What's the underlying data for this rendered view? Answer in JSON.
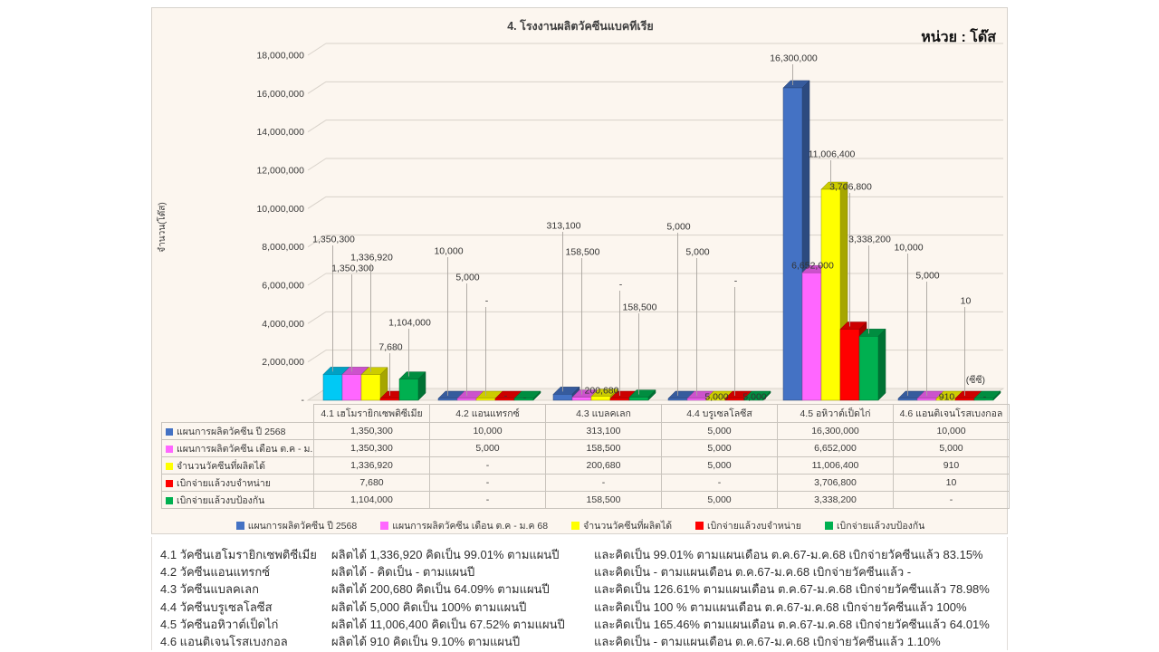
{
  "panel": {
    "background": "#FCF6EF",
    "border_color": "#D6D2CC"
  },
  "chart_data": {
    "type": "bar",
    "title": "4. โรงงานผลิตวัคซีนแบคทีเรีย",
    "unit": "หน่วย : โด๊ส",
    "ylabel": "จำนวน(โด๊ส)",
    "axis_note": "(ซีซี)",
    "ylim": [
      0,
      18000000
    ],
    "grid": true,
    "legend_position": "bottom",
    "y_axis_ticks": [
      "18,000,000",
      "16,000,000",
      "14,000,000",
      "12,000,000",
      "10,000,000",
      "8,000,000",
      "6,000,000",
      "4,000,000",
      "2,000,000",
      "-"
    ],
    "categories": [
      "4.1 เฮโมรายิกเซพติซีเมีย",
      "4.2 แอนแทรกซ์",
      "4.3 แบลคเลก",
      "4.4 บรูเซลโลซีส",
      "4.5 อหิวาต์เป็ดไก่",
      "4.6 แอนติเจนโรสเบงกอล"
    ],
    "series": [
      {
        "name": "แผนการผลิตวัคซีน ปี 2568",
        "color": "#4472C4",
        "values": [
          1350300,
          10000,
          313100,
          5000,
          16300000,
          10000
        ]
      },
      {
        "name": "แผนการผลิตวัคซีน เดือน ต.ค - ม.ค 68",
        "color": "#FF66FF",
        "values": [
          1350300,
          5000,
          158500,
          5000,
          6652000,
          5000
        ]
      },
      {
        "name": "จำนวนวัคซีนที่ผลิตได้",
        "color": "#FFFF00",
        "values": [
          1336920,
          null,
          200680,
          5000,
          11006400,
          910
        ]
      },
      {
        "name": "เบิกจ่ายแล้วงบจำหน่าย",
        "color": "#FF0000",
        "values": [
          7680,
          null,
          null,
          null,
          3706800,
          10
        ]
      },
      {
        "name": "เบิกจ่ายแล้วงบป้องกัน",
        "color": "#00B050",
        "values": [
          1104000,
          null,
          158500,
          5000,
          3338200,
          null
        ]
      }
    ],
    "point_color_overrides": [
      {
        "series_index": 0,
        "category_index": 0,
        "color": "#00C9F5"
      }
    ],
    "label_y_hints": [
      [
        255,
        268,
        240,
        241,
        55,
        264
      ],
      [
        287,
        297,
        269,
        269,
        284,
        295
      ],
      [
        275,
        323,
        422,
        429,
        161,
        429
      ],
      [
        374,
        428,
        305,
        301,
        197,
        323
      ],
      [
        347,
        430,
        330,
        429,
        255,
        429
      ]
    ]
  },
  "summary": {
    "rows": [
      {
        "name": "4.1 วัคซีนเฮโมรายิกเซพติซีเมีย",
        "produced": "ผลิตได้  1,336,920 คิดเป็น  99.01% ตามแผนปี",
        "monthly": "และคิดเป็น  99.01% ตามแผนเดือน  ต.ค.67-ม.ค.68  เบิกจ่ายวัคซีนแล้ว  83.15%"
      },
      {
        "name": "4.2 วัคซีนแอนแทรกซ์",
        "produced": "ผลิตได้  -          คิดเป็น  -  ตามแผนปี",
        "monthly": "และคิดเป็น  -  ตามแผนเดือน  ต.ค.67-ม.ค.68  เบิกจ่ายวัคซีนแล้ว  -"
      },
      {
        "name": "4.3 วัคซีนแบลคเลก",
        "produced": "ผลิตได้  200,680  คิดเป็น  64.09% ตามแผนปี",
        "monthly": "และคิดเป็น  126.61% ตามแผนเดือน  ต.ค.67-ม.ค.68  เบิกจ่ายวัคซีนแล้ว  78.98%"
      },
      {
        "name": "4.4 วัคซีนบรูเซลโลซีส",
        "produced": "ผลิตได้  5,000      คิดเป็น  100% ตามแผนปี",
        "monthly": "และคิดเป็น  100 % ตามแผนเดือน  ต.ค.67-ม.ค.68  เบิกจ่ายวัคซีนแล้ว  100%"
      },
      {
        "name": "4.5 วัคซีนอหิวาต์เป็ดไก่",
        "produced": "ผลิตได้  11,006,400 คิดเป็น 67.52% ตามแผนปี",
        "monthly": "และคิดเป็น  165.46% ตามแผนเดือน  ต.ค.67-ม.ค.68  เบิกจ่ายวัคซีนแล้ว  64.01%"
      },
      {
        "name": "4.6 แอนติเจนโรสเบงกอล",
        "produced": "ผลิตได้  910    คิดเป็น  9.10% ตามแผนปี",
        "monthly": "และคิดเป็น  -  ตามแผนเดือน  ต.ค.67-ม.ค.68  เบิกจ่ายวัคซีนแล้ว  1.10%"
      }
    ]
  }
}
